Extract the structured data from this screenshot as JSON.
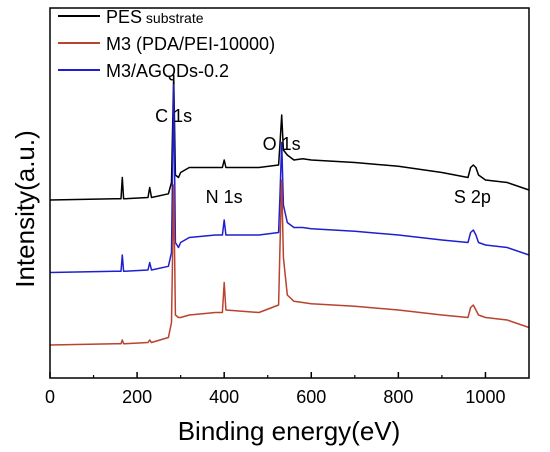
{
  "chart_data": {
    "type": "line",
    "title": "",
    "xlabel": "Binding energy(eV)",
    "ylabel": "Intensity(a.u.)",
    "xlim": [
      0,
      1100
    ],
    "x_ticks": [
      "0",
      "200",
      "400",
      "600",
      "800",
      "1000"
    ],
    "x_tick_values": [
      0,
      200,
      400,
      600,
      800,
      1000
    ],
    "y_ticks_shown": false,
    "grid": false,
    "legend_position": "top-left",
    "legend": [
      {
        "main": "PES",
        "sub": " substrate",
        "color": "#000000"
      },
      {
        "main": "M3 (PDA/PEI-10000)",
        "sub": "",
        "color": "#b8432f"
      },
      {
        "main": "M3/AGQDs-0.2",
        "sub": "",
        "color": "#1f1fcf"
      }
    ],
    "annotations": [
      {
        "text": "C 1s",
        "x": 284
      },
      {
        "text": "N 1s",
        "x": 400
      },
      {
        "text": "O 1s",
        "x": 532
      },
      {
        "text": "S 2p",
        "x": 970
      }
    ],
    "series": [
      {
        "name": "PES substrate",
        "color": "#000000",
        "offset": 0.58,
        "points": [
          [
            0,
            0
          ],
          [
            150,
            0.005
          ],
          [
            163,
            0.005
          ],
          [
            166,
            0.09
          ],
          [
            169,
            0.005
          ],
          [
            225,
            0.01
          ],
          [
            229,
            0.05
          ],
          [
            233,
            0.01
          ],
          [
            272,
            0.025
          ],
          [
            279,
            0.07
          ],
          [
            284,
            0.5
          ],
          [
            288,
            0.1
          ],
          [
            295,
            0.09
          ],
          [
            300,
            0.11
          ],
          [
            320,
            0.13
          ],
          [
            380,
            0.13
          ],
          [
            396,
            0.13
          ],
          [
            400,
            0.16
          ],
          [
            404,
            0.13
          ],
          [
            480,
            0.13
          ],
          [
            525,
            0.14
          ],
          [
            528,
            0.22
          ],
          [
            532,
            0.34
          ],
          [
            536,
            0.2
          ],
          [
            545,
            0.18
          ],
          [
            560,
            0.16
          ],
          [
            580,
            0.165
          ],
          [
            600,
            0.16
          ],
          [
            700,
            0.15
          ],
          [
            800,
            0.135
          ],
          [
            900,
            0.11
          ],
          [
            960,
            0.09
          ],
          [
            966,
            0.13
          ],
          [
            972,
            0.14
          ],
          [
            978,
            0.13
          ],
          [
            984,
            0.1
          ],
          [
            1000,
            0.08
          ],
          [
            1050,
            0.07
          ],
          [
            1100,
            0.04
          ]
        ]
      },
      {
        "name": "M3/AGQDs-0.2",
        "color": "#1f1fcf",
        "offset": 0.29,
        "points": [
          [
            0,
            0
          ],
          [
            150,
            0.005
          ],
          [
            163,
            0.005
          ],
          [
            166,
            0.07
          ],
          [
            169,
            0.005
          ],
          [
            225,
            0.01
          ],
          [
            229,
            0.04
          ],
          [
            233,
            0.01
          ],
          [
            272,
            0.025
          ],
          [
            279,
            0.08
          ],
          [
            284,
            0.75
          ],
          [
            288,
            0.12
          ],
          [
            295,
            0.1
          ],
          [
            300,
            0.12
          ],
          [
            320,
            0.14
          ],
          [
            380,
            0.15
          ],
          [
            396,
            0.15
          ],
          [
            400,
            0.21
          ],
          [
            404,
            0.15
          ],
          [
            480,
            0.15
          ],
          [
            525,
            0.16
          ],
          [
            528,
            0.3
          ],
          [
            532,
            0.52
          ],
          [
            536,
            0.27
          ],
          [
            545,
            0.2
          ],
          [
            560,
            0.18
          ],
          [
            580,
            0.18
          ],
          [
            600,
            0.175
          ],
          [
            700,
            0.165
          ],
          [
            800,
            0.15
          ],
          [
            900,
            0.13
          ],
          [
            960,
            0.12
          ],
          [
            966,
            0.16
          ],
          [
            972,
            0.17
          ],
          [
            978,
            0.15
          ],
          [
            984,
            0.12
          ],
          [
            1000,
            0.11
          ],
          [
            1050,
            0.1
          ],
          [
            1100,
            0.07
          ]
        ]
      },
      {
        "name": "M3 (PDA/PEI-10000)",
        "color": "#b8432f",
        "offset": 0.0,
        "points": [
          [
            0,
            0
          ],
          [
            150,
            0.005
          ],
          [
            163,
            0.005
          ],
          [
            166,
            0.02
          ],
          [
            169,
            0.005
          ],
          [
            225,
            0.01
          ],
          [
            229,
            0.02
          ],
          [
            233,
            0.01
          ],
          [
            272,
            0.03
          ],
          [
            279,
            0.09
          ],
          [
            284,
            0.64
          ],
          [
            288,
            0.12
          ],
          [
            295,
            0.11
          ],
          [
            300,
            0.11
          ],
          [
            320,
            0.12
          ],
          [
            380,
            0.13
          ],
          [
            396,
            0.13
          ],
          [
            400,
            0.25
          ],
          [
            404,
            0.14
          ],
          [
            480,
            0.13
          ],
          [
            525,
            0.16
          ],
          [
            528,
            0.38
          ],
          [
            532,
            0.66
          ],
          [
            536,
            0.35
          ],
          [
            545,
            0.2
          ],
          [
            560,
            0.175
          ],
          [
            580,
            0.17
          ],
          [
            600,
            0.165
          ],
          [
            700,
            0.155
          ],
          [
            800,
            0.14
          ],
          [
            900,
            0.12
          ],
          [
            960,
            0.11
          ],
          [
            966,
            0.15
          ],
          [
            972,
            0.16
          ],
          [
            978,
            0.14
          ],
          [
            984,
            0.12
          ],
          [
            1000,
            0.11
          ],
          [
            1050,
            0.1
          ],
          [
            1100,
            0.07
          ]
        ]
      }
    ]
  }
}
